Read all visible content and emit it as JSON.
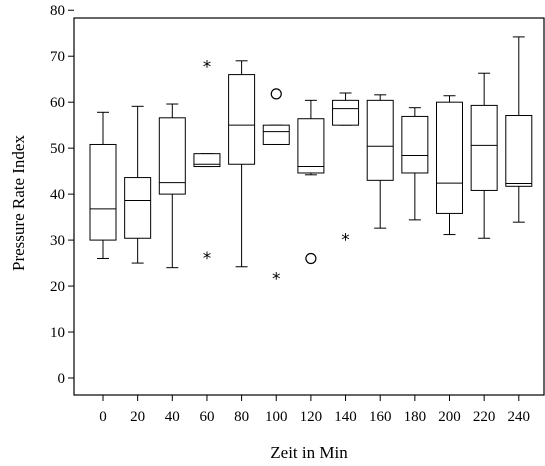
{
  "chart_data": {
    "type": "box",
    "xlabel": "Zeit in Min",
    "ylabel": "Pressure Rate Index",
    "ylim": [
      0,
      80
    ],
    "yticks": [
      0,
      10,
      20,
      30,
      40,
      50,
      60,
      70,
      80
    ],
    "categories": [
      "0",
      "20",
      "40",
      "60",
      "80",
      "100",
      "120",
      "140",
      "160",
      "180",
      "200",
      "220",
      "240"
    ],
    "boxes": [
      {
        "category": "0",
        "min": 26.0,
        "q1": 30.0,
        "median": 36.8,
        "q3": 50.8,
        "max": 57.8,
        "outliers": []
      },
      {
        "category": "20",
        "min": 25.0,
        "q1": 30.4,
        "median": 38.6,
        "q3": 43.6,
        "max": 59.1,
        "outliers": []
      },
      {
        "category": "40",
        "min": 24.0,
        "q1": 40.0,
        "median": 42.5,
        "q3": 56.6,
        "max": 59.6,
        "outliers": []
      },
      {
        "category": "60",
        "min": 46.0,
        "q1": 46.0,
        "median": 46.5,
        "q3": 48.8,
        "max": 48.8,
        "outliers": [
          {
            "value": 68.0,
            "marker": "*"
          },
          {
            "value": 26.3,
            "marker": "*"
          }
        ]
      },
      {
        "category": "80",
        "min": 24.2,
        "q1": 46.5,
        "median": 55.0,
        "q3": 66.0,
        "max": 69.0,
        "outliers": []
      },
      {
        "category": "100",
        "min": 50.8,
        "q1": 50.8,
        "median": 53.6,
        "q3": 55.0,
        "max": 55.0,
        "outliers": [
          {
            "value": 61.8,
            "marker": "o"
          },
          {
            "value": 21.9,
            "marker": "*"
          }
        ]
      },
      {
        "category": "120",
        "min": 44.2,
        "q1": 44.6,
        "median": 46.0,
        "q3": 56.4,
        "max": 60.4,
        "outliers": [
          {
            "value": 26.0,
            "marker": "o"
          }
        ]
      },
      {
        "category": "140",
        "min": 55.0,
        "q1": 55.0,
        "median": 58.6,
        "q3": 60.4,
        "max": 62.0,
        "outliers": [
          {
            "value": 30.4,
            "marker": "*"
          }
        ]
      },
      {
        "category": "160",
        "min": 32.6,
        "q1": 43.0,
        "median": 50.4,
        "q3": 60.4,
        "max": 61.6,
        "outliers": []
      },
      {
        "category": "180",
        "min": 34.4,
        "q1": 44.6,
        "median": 48.4,
        "q3": 56.9,
        "max": 58.8,
        "outliers": []
      },
      {
        "category": "200",
        "min": 31.2,
        "q1": 35.8,
        "median": 42.4,
        "q3": 60.0,
        "max": 61.4,
        "outliers": []
      },
      {
        "category": "220",
        "min": 30.4,
        "q1": 40.8,
        "median": 50.6,
        "q3": 59.3,
        "max": 66.3,
        "outliers": []
      },
      {
        "category": "240",
        "min": 33.9,
        "q1": 41.7,
        "median": 42.3,
        "q3": 57.1,
        "max": 74.2,
        "outliers": []
      }
    ]
  }
}
